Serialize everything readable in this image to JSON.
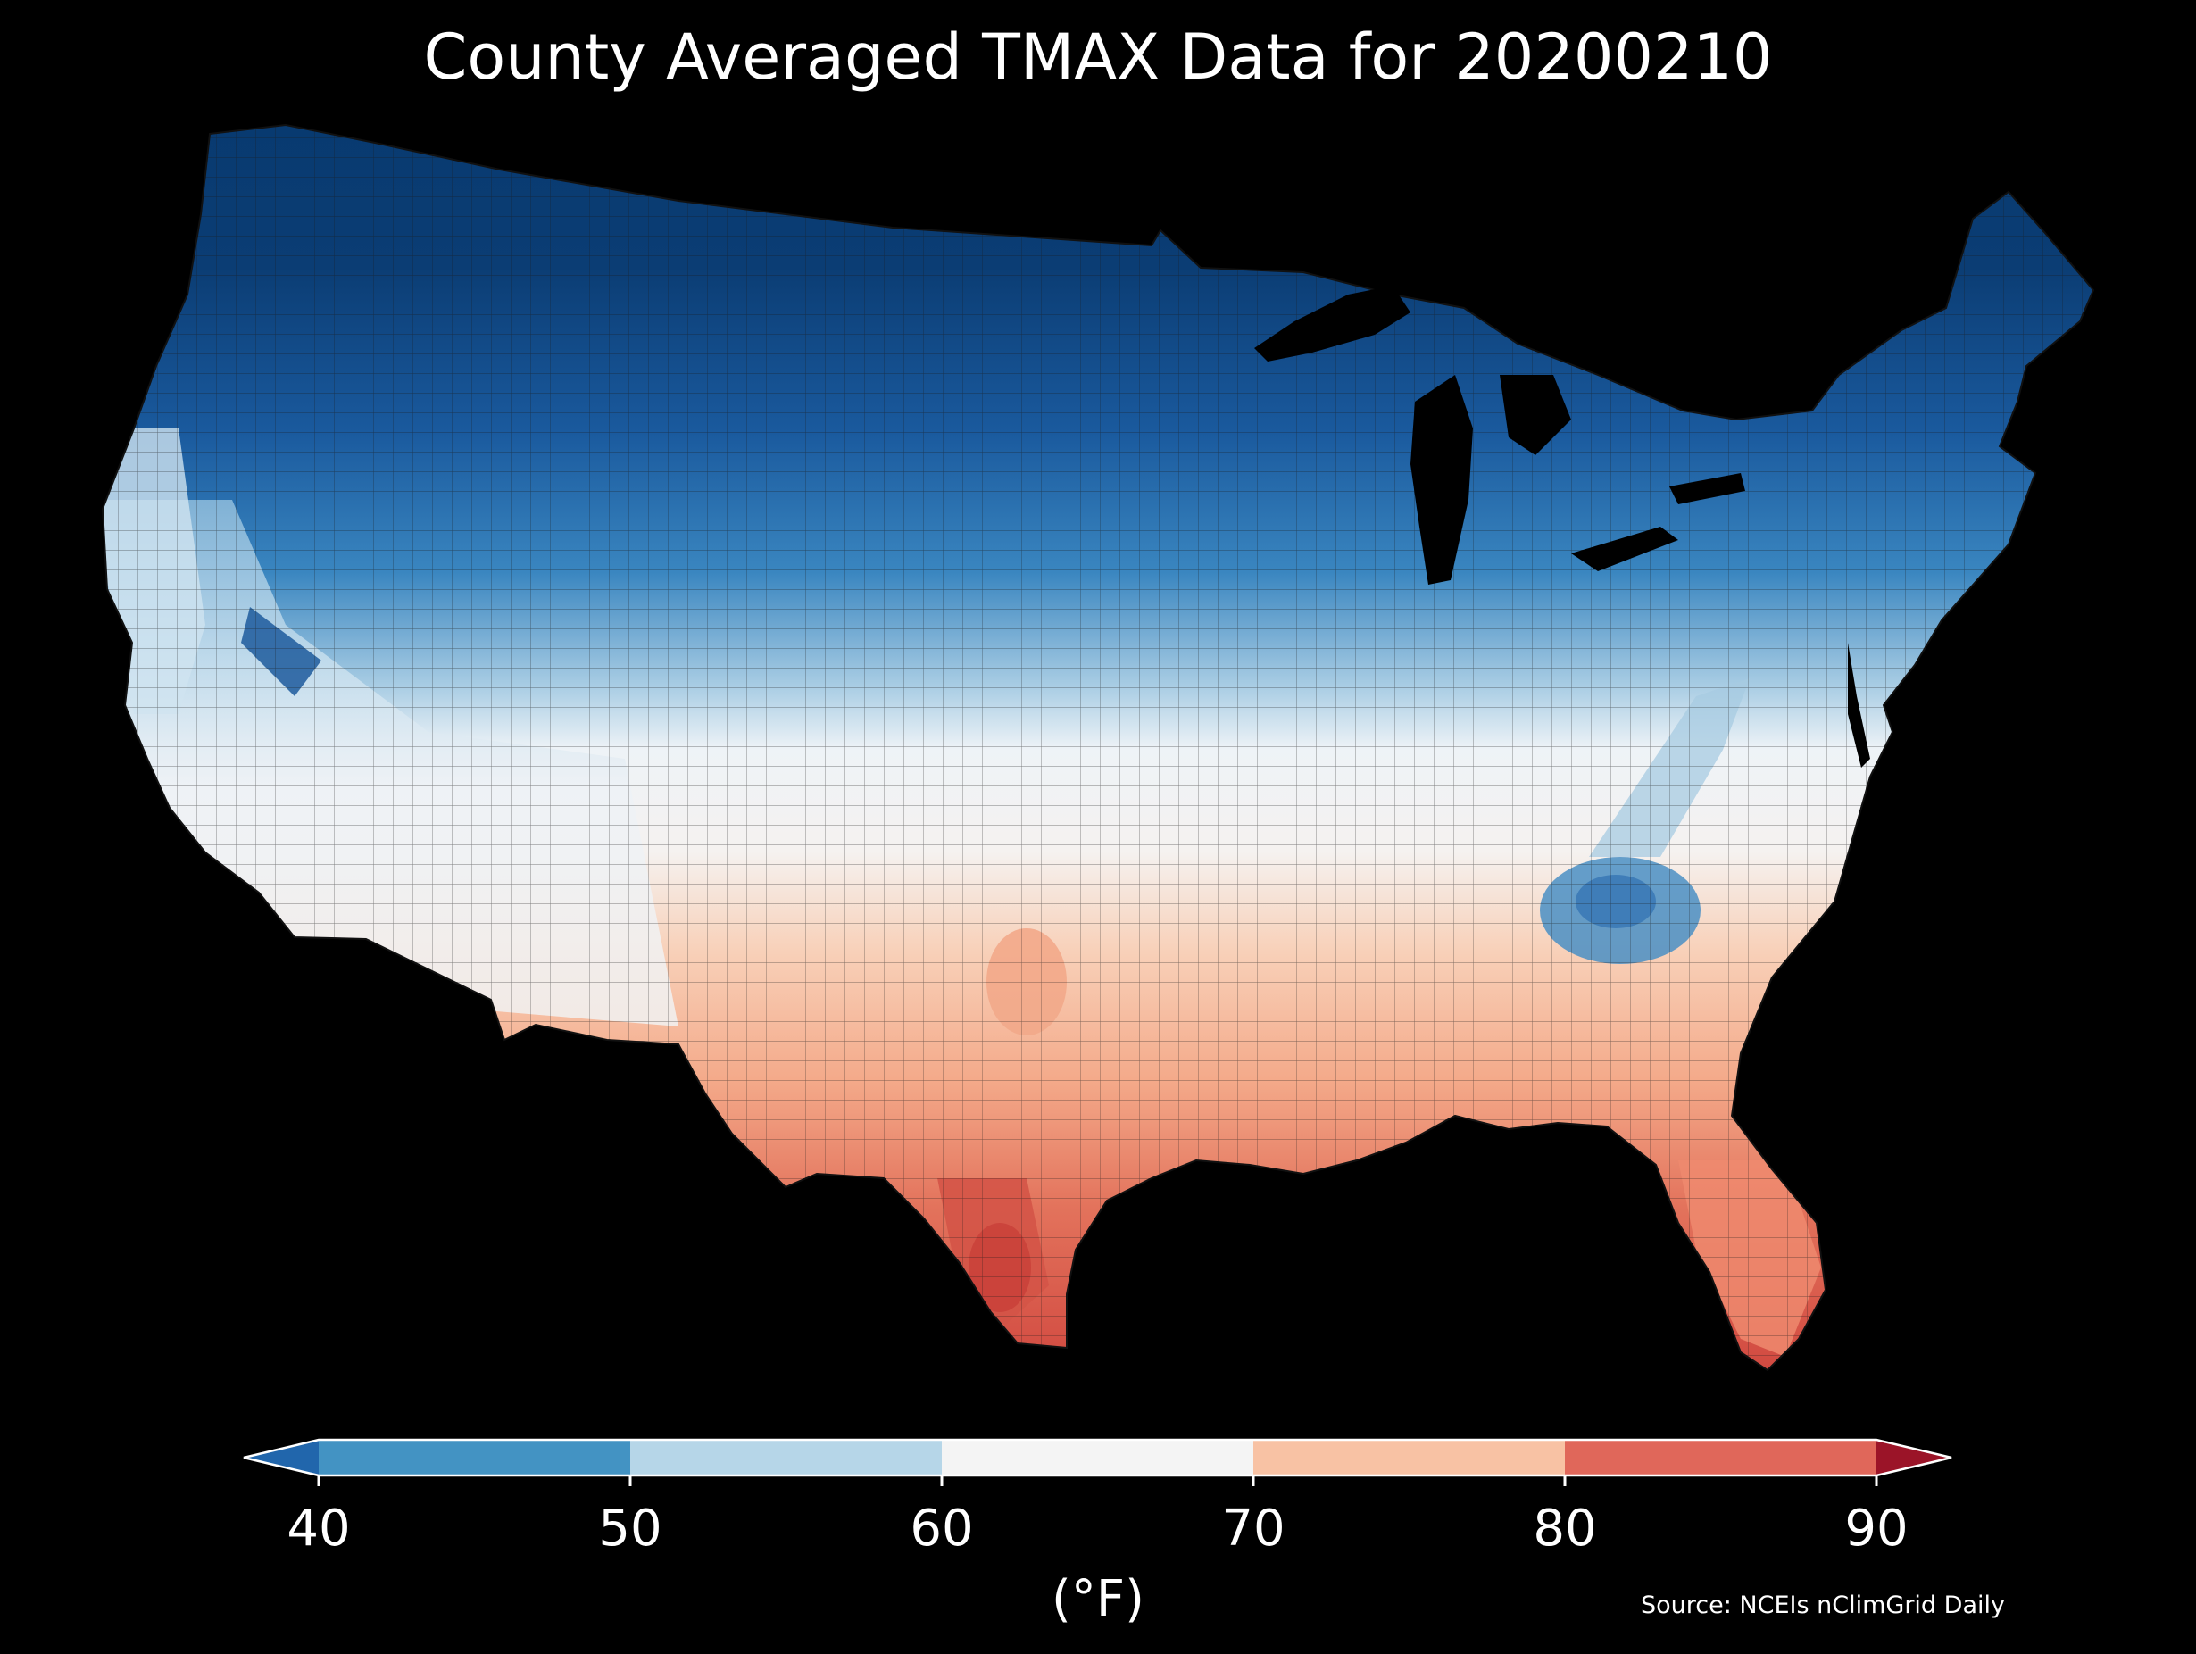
{
  "map": {
    "title": "County Averaged TMAX Data for 20200210",
    "region": "Contiguous United States",
    "subdivision": "counties",
    "variable": "TMAX",
    "date": "20200210",
    "source": "Source: NCEIs nClimGrid Daily"
  },
  "legend": {
    "label": "(°F)",
    "ticks": [
      "40",
      "50",
      "60",
      "70",
      "80",
      "90"
    ],
    "extend": "both",
    "bins": [
      {
        "min": null,
        "max": 40,
        "color": "#2166ac"
      },
      {
        "min": 40,
        "max": 50,
        "color": "#4393c3"
      },
      {
        "min": 50,
        "max": 60,
        "color": "#b6d6e8"
      },
      {
        "min": 60,
        "max": 70,
        "color": "#f4f4f4"
      },
      {
        "min": 70,
        "max": 80,
        "color": "#f8c2a4"
      },
      {
        "min": 80,
        "max": 90,
        "color": "#e0675a"
      },
      {
        "min": 90,
        "max": null,
        "color": "#9b1428"
      }
    ]
  },
  "colors": {
    "background": "#000000",
    "text": "#ffffff",
    "water": "#000000",
    "county_border": "#1a1a1a"
  }
}
